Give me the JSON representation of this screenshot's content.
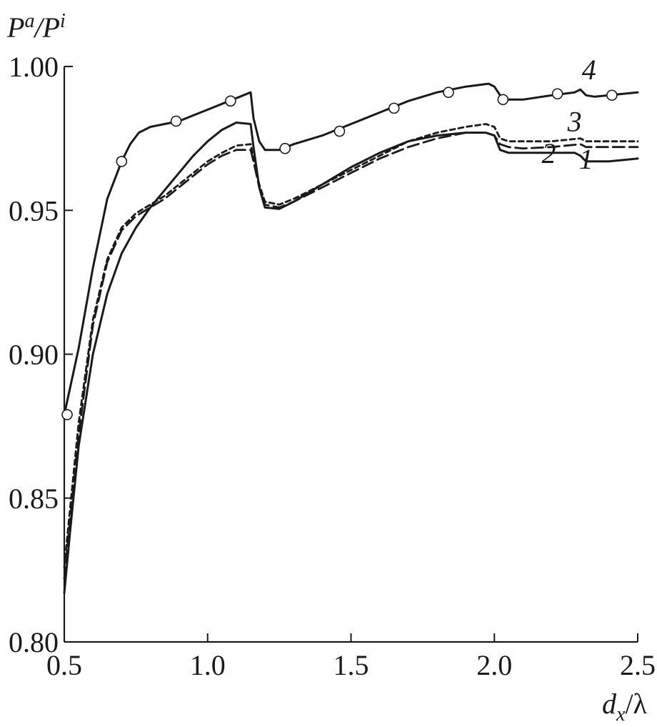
{
  "chart_data": {
    "type": "line",
    "xlabel": "d_x/λ",
    "ylabel": "P^a/P^i",
    "xlim": [
      0.5,
      2.5
    ],
    "ylim": [
      0.8,
      1.0
    ],
    "x_ticks": [
      0.5,
      1.0,
      1.5,
      2.0,
      2.5
    ],
    "x_tick_labels": [
      "0.5",
      "1.0",
      "1.5",
      "2.0",
      "2.5"
    ],
    "y_ticks": [
      0.8,
      0.85,
      0.9,
      0.95,
      1.0
    ],
    "y_tick_labels": [
      "0.80",
      "0.85",
      "0.90",
      "0.95",
      "1.00"
    ],
    "grid": false,
    "series": [
      {
        "label": "1",
        "style": "solid",
        "x": [
          0.5,
          0.52,
          0.55,
          0.6,
          0.65,
          0.7,
          0.75,
          0.8,
          0.85,
          0.9,
          0.95,
          1.0,
          1.05,
          1.1,
          1.15,
          1.16,
          1.18,
          1.2,
          1.25,
          1.3,
          1.4,
          1.5,
          1.6,
          1.7,
          1.8,
          1.9,
          1.97,
          2.0,
          2.02,
          2.05,
          2.1,
          2.2,
          2.28,
          2.3,
          2.32,
          2.35,
          2.4,
          2.5
        ],
        "y": [
          0.817,
          0.838,
          0.868,
          0.9,
          0.921,
          0.935,
          0.944,
          0.951,
          0.957,
          0.963,
          0.969,
          0.974,
          0.978,
          0.9805,
          0.98,
          0.972,
          0.958,
          0.951,
          0.9505,
          0.953,
          0.959,
          0.965,
          0.97,
          0.974,
          0.976,
          0.977,
          0.977,
          0.976,
          0.971,
          0.97,
          0.97,
          0.97,
          0.97,
          0.969,
          0.967,
          0.967,
          0.967,
          0.968
        ]
      },
      {
        "label": "2",
        "style": "long-dash",
        "x": [
          0.5,
          0.52,
          0.55,
          0.6,
          0.65,
          0.7,
          0.75,
          0.8,
          0.85,
          0.9,
          0.95,
          1.0,
          1.05,
          1.1,
          1.15,
          1.16,
          1.18,
          1.2,
          1.25,
          1.3,
          1.4,
          1.5,
          1.6,
          1.7,
          1.8,
          1.9,
          1.97,
          2.0,
          2.02,
          2.05,
          2.1,
          2.2,
          2.3,
          2.32,
          2.35,
          2.4,
          2.5
        ],
        "y": [
          0.822,
          0.842,
          0.872,
          0.91,
          0.932,
          0.943,
          0.948,
          0.951,
          0.954,
          0.958,
          0.962,
          0.966,
          0.969,
          0.971,
          0.971,
          0.967,
          0.958,
          0.952,
          0.951,
          0.953,
          0.958,
          0.963,
          0.968,
          0.972,
          0.975,
          0.977,
          0.977,
          0.976,
          0.973,
          0.972,
          0.9715,
          0.972,
          0.973,
          0.972,
          0.972,
          0.972,
          0.972
        ]
      },
      {
        "label": "3",
        "style": "short-dash",
        "x": [
          0.5,
          0.52,
          0.55,
          0.6,
          0.65,
          0.7,
          0.75,
          0.8,
          0.85,
          0.9,
          0.95,
          1.0,
          1.05,
          1.1,
          1.15,
          1.16,
          1.18,
          1.2,
          1.25,
          1.3,
          1.4,
          1.5,
          1.6,
          1.7,
          1.8,
          1.9,
          1.97,
          2.0,
          2.02,
          2.05,
          2.1,
          2.2,
          2.3,
          2.32,
          2.35,
          2.4,
          2.5
        ],
        "y": [
          0.826,
          0.846,
          0.876,
          0.912,
          0.933,
          0.944,
          0.949,
          0.952,
          0.955,
          0.959,
          0.963,
          0.967,
          0.97,
          0.9725,
          0.973,
          0.968,
          0.959,
          0.953,
          0.952,
          0.954,
          0.959,
          0.964,
          0.969,
          0.974,
          0.977,
          0.979,
          0.98,
          0.979,
          0.975,
          0.974,
          0.974,
          0.974,
          0.975,
          0.974,
          0.974,
          0.974,
          0.974
        ]
      },
      {
        "label": "4",
        "style": "solid-with-circles",
        "x": [
          0.5,
          0.55,
          0.6,
          0.65,
          0.7,
          0.73,
          0.76,
          0.8,
          0.85,
          0.9,
          0.95,
          1.0,
          1.05,
          1.1,
          1.15,
          1.16,
          1.18,
          1.2,
          1.25,
          1.3,
          1.4,
          1.5,
          1.6,
          1.7,
          1.8,
          1.9,
          1.98,
          2.0,
          2.02,
          2.04,
          2.1,
          2.2,
          2.28,
          2.3,
          2.32,
          2.35,
          2.4,
          2.5
        ],
        "y": [
          0.879,
          0.902,
          0.93,
          0.954,
          0.967,
          0.973,
          0.977,
          0.979,
          0.98,
          0.981,
          0.983,
          0.985,
          0.987,
          0.989,
          0.991,
          0.982,
          0.974,
          0.971,
          0.971,
          0.973,
          0.976,
          0.98,
          0.984,
          0.988,
          0.991,
          0.993,
          0.994,
          0.993,
          0.99,
          0.9885,
          0.9885,
          0.99,
          0.991,
          0.992,
          0.99,
          0.9895,
          0.99,
          0.991
        ],
        "markers_x": [
          0.51,
          0.7,
          0.89,
          1.08,
          1.27,
          1.46,
          1.65,
          1.84,
          2.03,
          2.22,
          2.41
        ],
        "markers_y": [
          0.879,
          0.967,
          0.981,
          0.988,
          0.9715,
          0.9775,
          0.9855,
          0.991,
          0.9885,
          0.9905,
          0.99
        ]
      }
    ],
    "curve_labels": [
      {
        "text": "1",
        "x": 2.32,
        "y": 0.9645
      },
      {
        "text": "2",
        "x": 2.19,
        "y": 0.9665
      },
      {
        "text": "3",
        "x": 2.28,
        "y": 0.9775
      },
      {
        "text": "4",
        "x": 2.33,
        "y": 0.9955
      }
    ]
  }
}
